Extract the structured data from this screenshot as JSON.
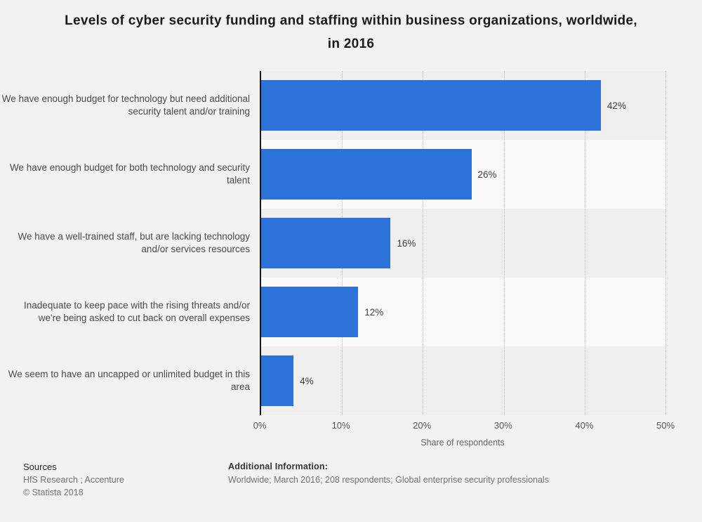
{
  "title": "Levels of cyber security funding and staffing within business organizations, worldwide, in 2016",
  "chart_data": {
    "type": "bar",
    "orientation": "horizontal",
    "title": "Levels of cyber security funding and staffing within business organizations, worldwide, in 2016",
    "categories": [
      "We have enough budget for technology but need additional security talent and/or training",
      "We have enough budget for both technology and security talent",
      "We have a well-trained staff, but are lacking technology and/or services resources",
      "Inadequate to keep pace with the rising threats and/or we're being asked to cut back on overall expenses",
      "We seem to have an uncapped or unlimited budget in this area"
    ],
    "values": [
      42,
      26,
      16,
      12,
      4
    ],
    "value_labels": [
      "42%",
      "26%",
      "16%",
      "12%",
      "4%"
    ],
    "xlabel": "Share of respondents",
    "ylabel": "",
    "x_ticks": [
      "0%",
      "10%",
      "20%",
      "30%",
      "40%",
      "50%"
    ],
    "xlim": [
      0,
      50
    ],
    "grid": "dotted-vertical",
    "legend": "none",
    "bar_color": "#2c72d9"
  },
  "footer": {
    "sources_heading": "Sources",
    "sources_line1": "HfS Research ; Accenture",
    "sources_line2": "© Statista 2018",
    "additional_heading": "Additional Information:",
    "additional_text": "Worldwide; March 2016; 208 respondents; Global enterprise security professionals"
  }
}
